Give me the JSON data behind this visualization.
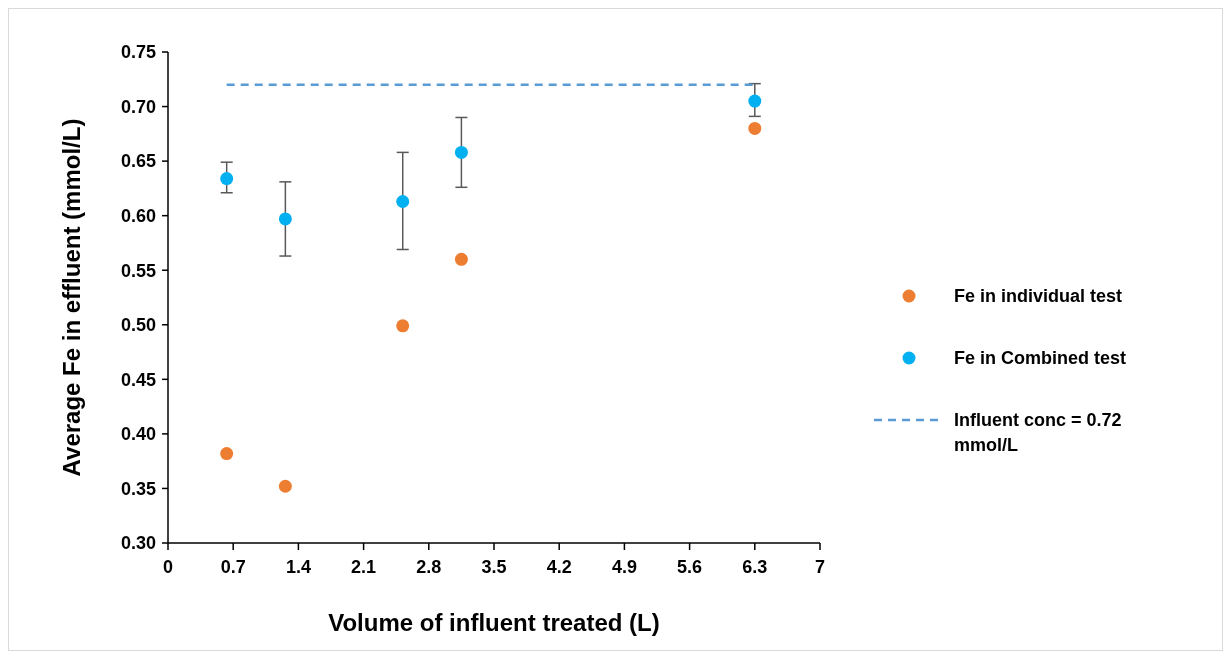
{
  "chart_data": {
    "type": "scatter",
    "xlabel": "Volume of influent treated (L)",
    "ylabel": "Average Fe in effluent (mmol/L)",
    "xlim": [
      0,
      7
    ],
    "xticks": [
      0,
      0.7,
      1.4,
      2.1,
      2.8,
      3.5,
      4.2,
      4.9,
      5.6,
      6.3,
      7
    ],
    "ylim": [
      0.3,
      0.75
    ],
    "yticks": [
      {
        "value": 0.3,
        "label": "0.30"
      },
      {
        "value": 0.35,
        "label": "0.35"
      },
      {
        "value": 0.4,
        "label": "0.40"
      },
      {
        "value": 0.45,
        "label": "0.45"
      },
      {
        "value": 0.5,
        "label": "0.50"
      },
      {
        "value": 0.55,
        "label": "0.55"
      },
      {
        "value": 0.6,
        "label": "0.60"
      },
      {
        "value": 0.65,
        "label": "0.65"
      },
      {
        "value": 0.7,
        "label": "0.70"
      },
      {
        "value": 0.75,
        "label": "0.75"
      }
    ],
    "x": [
      0.63,
      1.26,
      2.52,
      3.15,
      6.3
    ],
    "legend": "right",
    "grid": false,
    "marker": "circle",
    "series": [
      {
        "name": "Fe in individual test",
        "color": "#ed7d31",
        "values": [
          0.382,
          0.352,
          0.499,
          0.56,
          0.68
        ]
      },
      {
        "name": "Fe in Combined test",
        "color": "#00b0f0",
        "values": [
          0.634,
          0.597,
          0.613,
          0.658,
          0.705
        ],
        "errors": [
          [
            0.621,
            0.649
          ],
          [
            0.563,
            0.631
          ],
          [
            0.569,
            0.658
          ],
          [
            0.626,
            0.69
          ],
          [
            0.691,
            0.721
          ]
        ]
      },
      {
        "name": "Influent conc = 0.72 mmol/L",
        "type": "line",
        "line_style": "dashed",
        "marker": "none",
        "color": "#5b9bd5",
        "x": [
          0.63,
          6.3
        ],
        "values": [
          0.72,
          0.72
        ]
      }
    ]
  }
}
